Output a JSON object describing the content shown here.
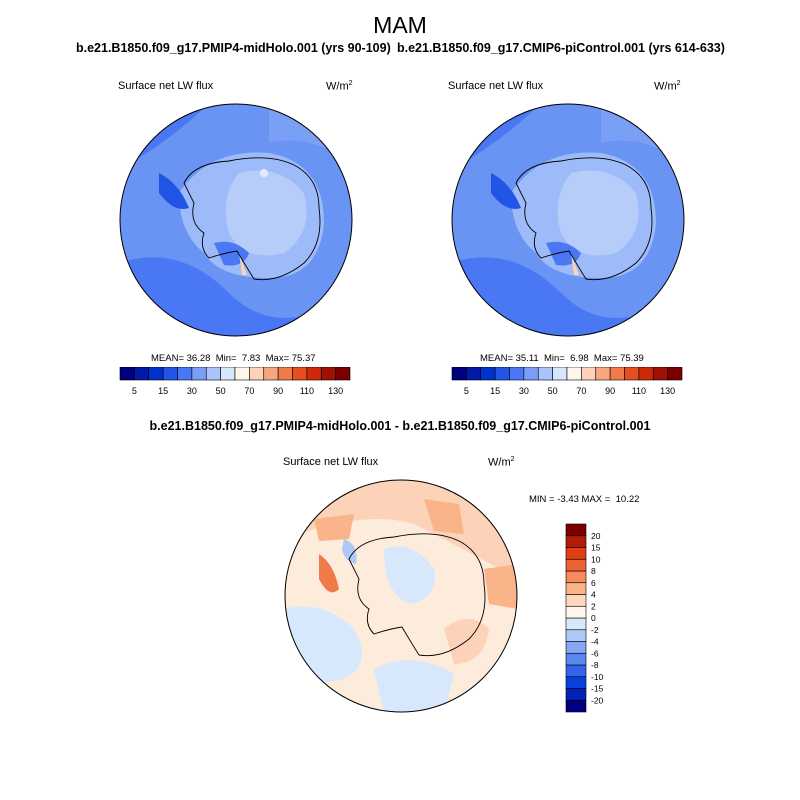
{
  "figure": {
    "season": "MAM",
    "variable_label": "Surface net LW flux",
    "units_base": "W/m",
    "units_exp": "2"
  },
  "panels": [
    {
      "case_title": "b.e21.B1850.f09_g17.PMIP4-midHolo.001 (yrs 90-109)",
      "stats": {
        "mean_label": "MEAN=",
        "mean": "36.28",
        "min_label": "Min=",
        "min": "7.83",
        "max_label": "Max=",
        "max": "75.37"
      }
    },
    {
      "case_title": "b.e21.B1850.f09_g17.CMIP6-piControl.001 (yrs 614-633)",
      "stats": {
        "mean_label": "MEAN=",
        "mean": "35.11",
        "min_label": "Min=",
        "min": "6.98",
        "max_label": "Max=",
        "max": "75.39"
      }
    }
  ],
  "abs_colorbar": {
    "colors": [
      "#00007f",
      "#001aa6",
      "#0033cc",
      "#2255e6",
      "#4a78f5",
      "#7a9ef7",
      "#a9c4fa",
      "#d6e6fc",
      "#fff6ea",
      "#fdd2b8",
      "#f7a77e",
      "#f07a48",
      "#e84f20",
      "#cc2a0a",
      "#a01005",
      "#7a0000"
    ],
    "tick_labels": [
      "5",
      "15",
      "30",
      "50",
      "70",
      "90",
      "110",
      "130"
    ]
  },
  "diff": {
    "title": "b.e21.B1850.f09_g17.PMIP4-midHolo.001 - b.e21.B1850.f09_g17.CMIP6-piControl.001",
    "min_label": "MIN =",
    "min": "-3.43",
    "max_label": "MAX =",
    "max": "10.22"
  },
  "diff_colorbar": {
    "colors": [
      "#00007f",
      "#0022b8",
      "#0a3fe0",
      "#3464ea",
      "#5c86ef",
      "#86a8f4",
      "#afc8f8",
      "#d8e8fc",
      "#fff7ec",
      "#fdd8bc",
      "#f9b48a",
      "#f48b5c",
      "#ec6232",
      "#e03f14",
      "#b41a06",
      "#7a0000"
    ],
    "tick_labels": [
      "-20",
      "-15",
      "-10",
      "-8",
      "-6",
      "-4",
      "-2",
      "0",
      "2",
      "4",
      "6",
      "8",
      "10",
      "15",
      "20"
    ]
  }
}
